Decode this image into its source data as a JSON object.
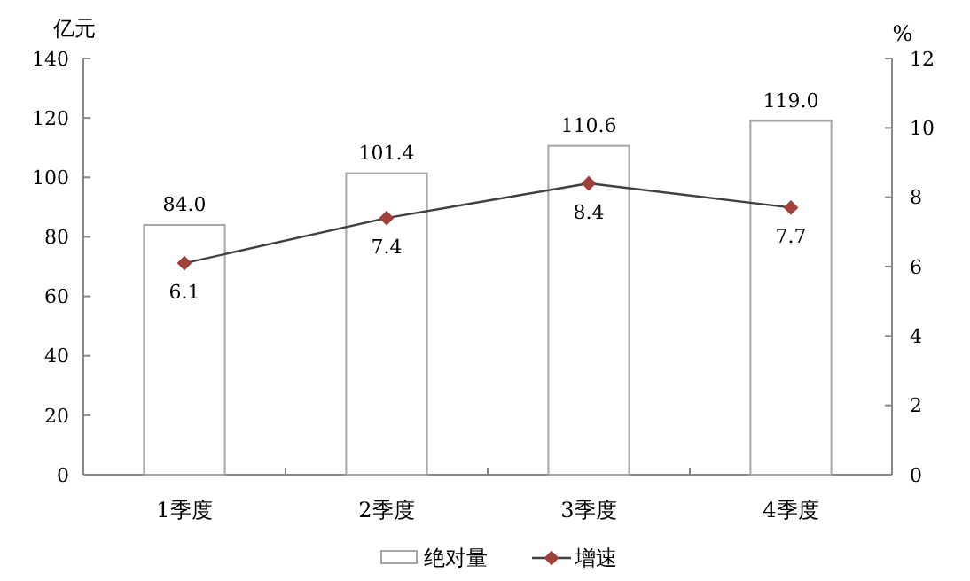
{
  "chart_data": {
    "type": "bar",
    "categories": [
      "1季度",
      "2季度",
      "3季度",
      "4季度"
    ],
    "series": [
      {
        "name": "绝对量",
        "color": "#ffffff",
        "values": [
          84.0,
          101.4,
          110.6,
          119.0
        ],
        "value_labels": [
          "84.0",
          "101.4",
          "110.6",
          "119.0"
        ]
      },
      {
        "name": "增速",
        "type": "line",
        "axis": "y2",
        "color": "#a0413c",
        "values": [
          6.1,
          7.4,
          8.4,
          7.7
        ],
        "value_labels": [
          "6.1",
          "7.4",
          "8.4",
          "7.7"
        ]
      }
    ],
    "ylabel": "亿元",
    "y2label": "%",
    "ylim": [
      0,
      140
    ],
    "yticks": [
      0,
      20,
      40,
      60,
      80,
      100,
      120,
      140
    ],
    "y2lim": [
      0,
      12
    ],
    "y2ticks": [
      0,
      2,
      4,
      6,
      8,
      10,
      12
    ],
    "legend": "bottom",
    "marker": "diamond",
    "grid": false
  }
}
